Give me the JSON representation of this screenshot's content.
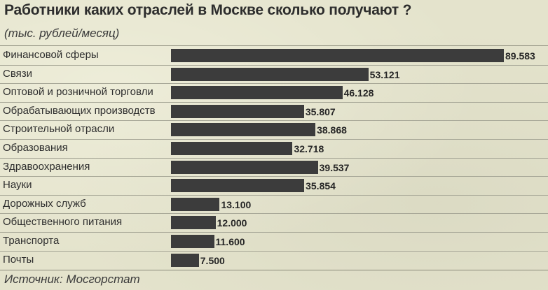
{
  "title": "Работники каких отраслей в Москве сколько получают ?",
  "subtitle": "(тыс. рублей/месяц)",
  "source": "Источник: Мосгорстат",
  "colors": {
    "bar": "#3c3c3c",
    "background": "#e4e3cc"
  },
  "chart_data": {
    "type": "bar",
    "orientation": "horizontal",
    "title": "Работники каких отраслей в Москве сколько получают ?",
    "subtitle": "(тыс. рублей/месяц)",
    "categories": [
      "Финансовой сферы",
      "Связи",
      "Оптовой и розничной торговли",
      "Обрабатывающих производств",
      "Строительной отрасли",
      "Образования",
      "Здравоохранения",
      "Науки",
      "Дорожных служб",
      "Общественного питания",
      "Транспорта",
      "Почты"
    ],
    "values": [
      89.583,
      53.121,
      46.128,
      35.807,
      38.868,
      32.718,
      39.537,
      35.854,
      13.1,
      12.0,
      11.6,
      7.5
    ],
    "value_labels": [
      "89.583",
      "53.121",
      "46.128",
      "35.807",
      "38.868",
      "32.718",
      "39.537",
      "35.854",
      "13.100",
      "12.000",
      "11.600",
      "7.500"
    ],
    "xlim": [
      0,
      89.583
    ],
    "grid": false,
    "legend": "none"
  }
}
